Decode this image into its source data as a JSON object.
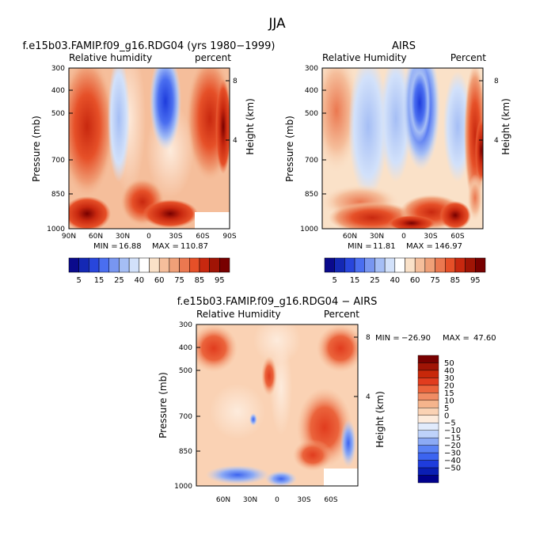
{
  "figure": {
    "title": "JJA"
  },
  "colors": {
    "humidity_scale": [
      "#0a0a8c",
      "#1428b4",
      "#2846dc",
      "#4a6ef0",
      "#7896f0",
      "#a5bef5",
      "#d2e1fa",
      "#ffffff",
      "#fae1c8",
      "#f5be9b",
      "#f0a078",
      "#eb7850",
      "#e65028",
      "#c8280f",
      "#a01405",
      "#780000"
    ],
    "diff_scale": [
      "#00008c",
      "#0a1eb4",
      "#1e3cdc",
      "#3c64f0",
      "#5a82f5",
      "#8caaf5",
      "#bed2fa",
      "#e1ebfc",
      "#fdebdc",
      "#fad2b4",
      "#f5b48c",
      "#f08c64",
      "#eb643c",
      "#e13c1e",
      "#c8280a",
      "#a01405",
      "#780000"
    ]
  },
  "chart_data": [
    {
      "type": "heatmap",
      "panel": "model",
      "title": "f.e15b03.FAMIP.f09_g16.RDG04 (yrs 1980−1999)",
      "subtitle_left": "Relative humidity",
      "subtitle_right": "percent",
      "ylabel": "Pressure (mb)",
      "ylabel_right": "Height (km)",
      "y_ticks": [
        "300",
        "400",
        "500",
        "700",
        "850",
        "1000"
      ],
      "y_right_ticks": [
        "8",
        "4"
      ],
      "x_ticks": [
        "90N",
        "60N",
        "30N",
        "0",
        "30S",
        "60S",
        "90S"
      ],
      "stats": {
        "min_label": "MIN =",
        "min": "16.88",
        "max_label": "MAX =",
        "max": "110.87"
      },
      "colorbar_labels": [
        "5",
        "15",
        "25",
        "40",
        "60",
        "75",
        "85",
        "95"
      ]
    },
    {
      "type": "heatmap",
      "panel": "obs",
      "title": "AIRS",
      "subtitle_left": "Relative Humidity",
      "subtitle_right": "Percent",
      "ylabel": "Pressure (mb)",
      "ylabel_right": "Height (km)",
      "y_ticks": [
        "300",
        "400",
        "500",
        "700",
        "850",
        "1000"
      ],
      "y_right_ticks": [
        "8",
        "4"
      ],
      "x_ticks": [
        "60N",
        "30N",
        "0",
        "30S",
        "60S"
      ],
      "stats": {
        "min_label": "MIN =",
        "min": "11.81",
        "max_label": "MAX =",
        "max": "146.97"
      },
      "colorbar_labels": [
        "5",
        "15",
        "25",
        "40",
        "60",
        "75",
        "85",
        "95"
      ]
    },
    {
      "type": "heatmap",
      "panel": "difference",
      "title": "f.e15b03.FAMIP.f09_g16.RDG04 − AIRS",
      "subtitle_left": "Relative Humidity",
      "subtitle_right": "Percent",
      "ylabel": "Pressure (mb)",
      "ylabel_right": "Height (km)",
      "y_ticks": [
        "300",
        "400",
        "500",
        "700",
        "850",
        "1000"
      ],
      "y_right_ticks": [
        "8",
        "4"
      ],
      "x_ticks": [
        "60N",
        "30N",
        "0",
        "30S",
        "60S"
      ],
      "stats": {
        "min_label": "MIN =",
        "min": "−26.90",
        "max_label": "MAX =",
        "max": "47.60"
      },
      "colorbar_labels": [
        "50",
        "40",
        "30",
        "20",
        "15",
        "10",
        "5",
        "0",
        "−5",
        "−10",
        "−15",
        "−20",
        "−30",
        "−40",
        "−50"
      ]
    }
  ]
}
